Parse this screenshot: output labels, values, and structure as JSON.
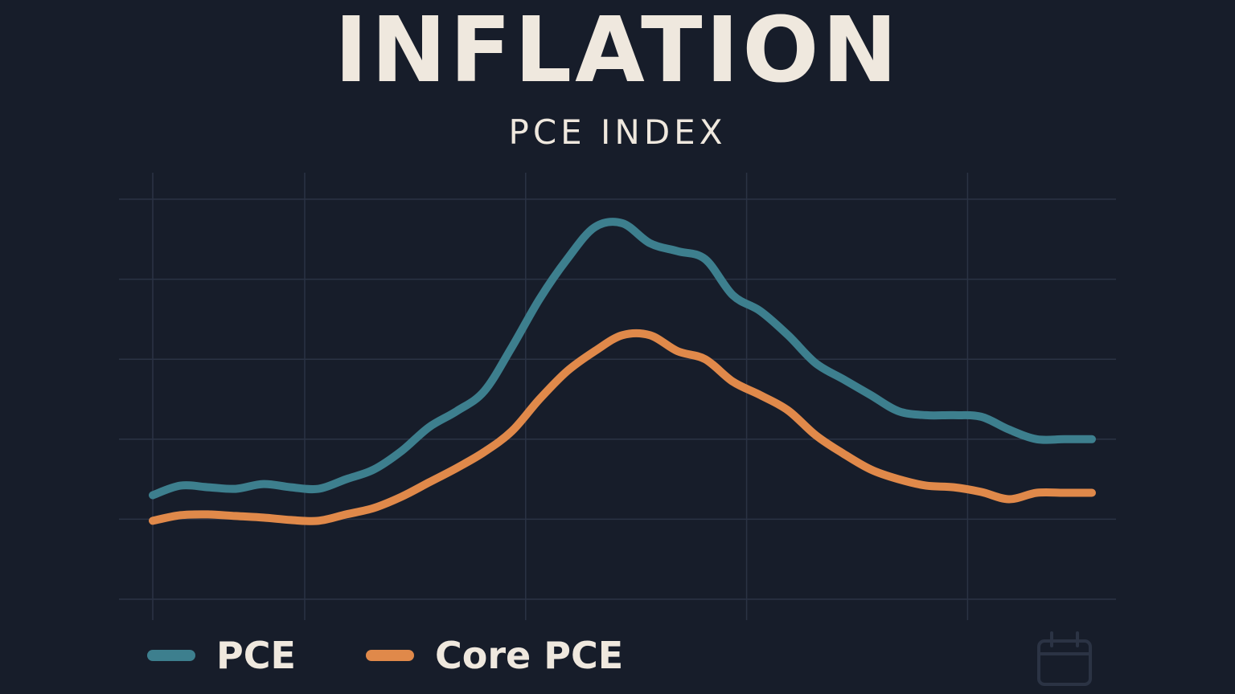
{
  "colors": {
    "background": "#171d2a",
    "grid": "#2b3344",
    "text": "#efe8de",
    "pce": "#3d7f8e",
    "core_pce": "#e0894a",
    "calendar_icon": "#2b3344"
  },
  "legend": {
    "pce_label": "PCE",
    "core_pce_label": "Core PCE"
  },
  "icons": {
    "calendar": "calendar-icon"
  },
  "chart_data": {
    "type": "line",
    "title": "INFLATION",
    "subtitle": "PCE INDEX",
    "xlabel": "",
    "ylabel": "",
    "grid": true,
    "legend_position": "bottom-left",
    "x_range": [
      0,
      34
    ],
    "y_range": [
      0,
      5
    ],
    "x_gridlines": [
      0,
      5.5,
      13.5,
      21.5,
      29.5
    ],
    "y_gridlines": [
      0,
      1,
      2,
      3,
      4,
      5
    ],
    "x": [
      0,
      1,
      2,
      3,
      4,
      5,
      6,
      7,
      8,
      9,
      10,
      11,
      12,
      13,
      14,
      15,
      16,
      17,
      18,
      19,
      20,
      21,
      22,
      23,
      24,
      25,
      26,
      27,
      28,
      29,
      30,
      31,
      32,
      33,
      34
    ],
    "series": [
      {
        "name": "PCE",
        "values": [
          1.3,
          1.42,
          1.4,
          1.38,
          1.44,
          1.4,
          1.38,
          1.5,
          1.62,
          1.85,
          2.15,
          2.35,
          2.6,
          3.15,
          3.75,
          4.25,
          4.65,
          4.7,
          4.45,
          4.35,
          4.25,
          3.8,
          3.6,
          3.3,
          2.95,
          2.75,
          2.55,
          2.35,
          2.3,
          2.3,
          2.28,
          2.12,
          2.0,
          2.0,
          2.0
        ],
        "color": "#3d7f8e"
      },
      {
        "name": "Core PCE",
        "values": [
          0.98,
          1.05,
          1.06,
          1.04,
          1.02,
          0.99,
          0.98,
          1.06,
          1.14,
          1.28,
          1.46,
          1.64,
          1.84,
          2.1,
          2.5,
          2.85,
          3.1,
          3.3,
          3.3,
          3.1,
          3.0,
          2.72,
          2.55,
          2.36,
          2.05,
          1.82,
          1.62,
          1.5,
          1.42,
          1.4,
          1.34,
          1.25,
          1.33,
          1.33,
          1.33
        ],
        "color": "#e0894a"
      }
    ]
  }
}
